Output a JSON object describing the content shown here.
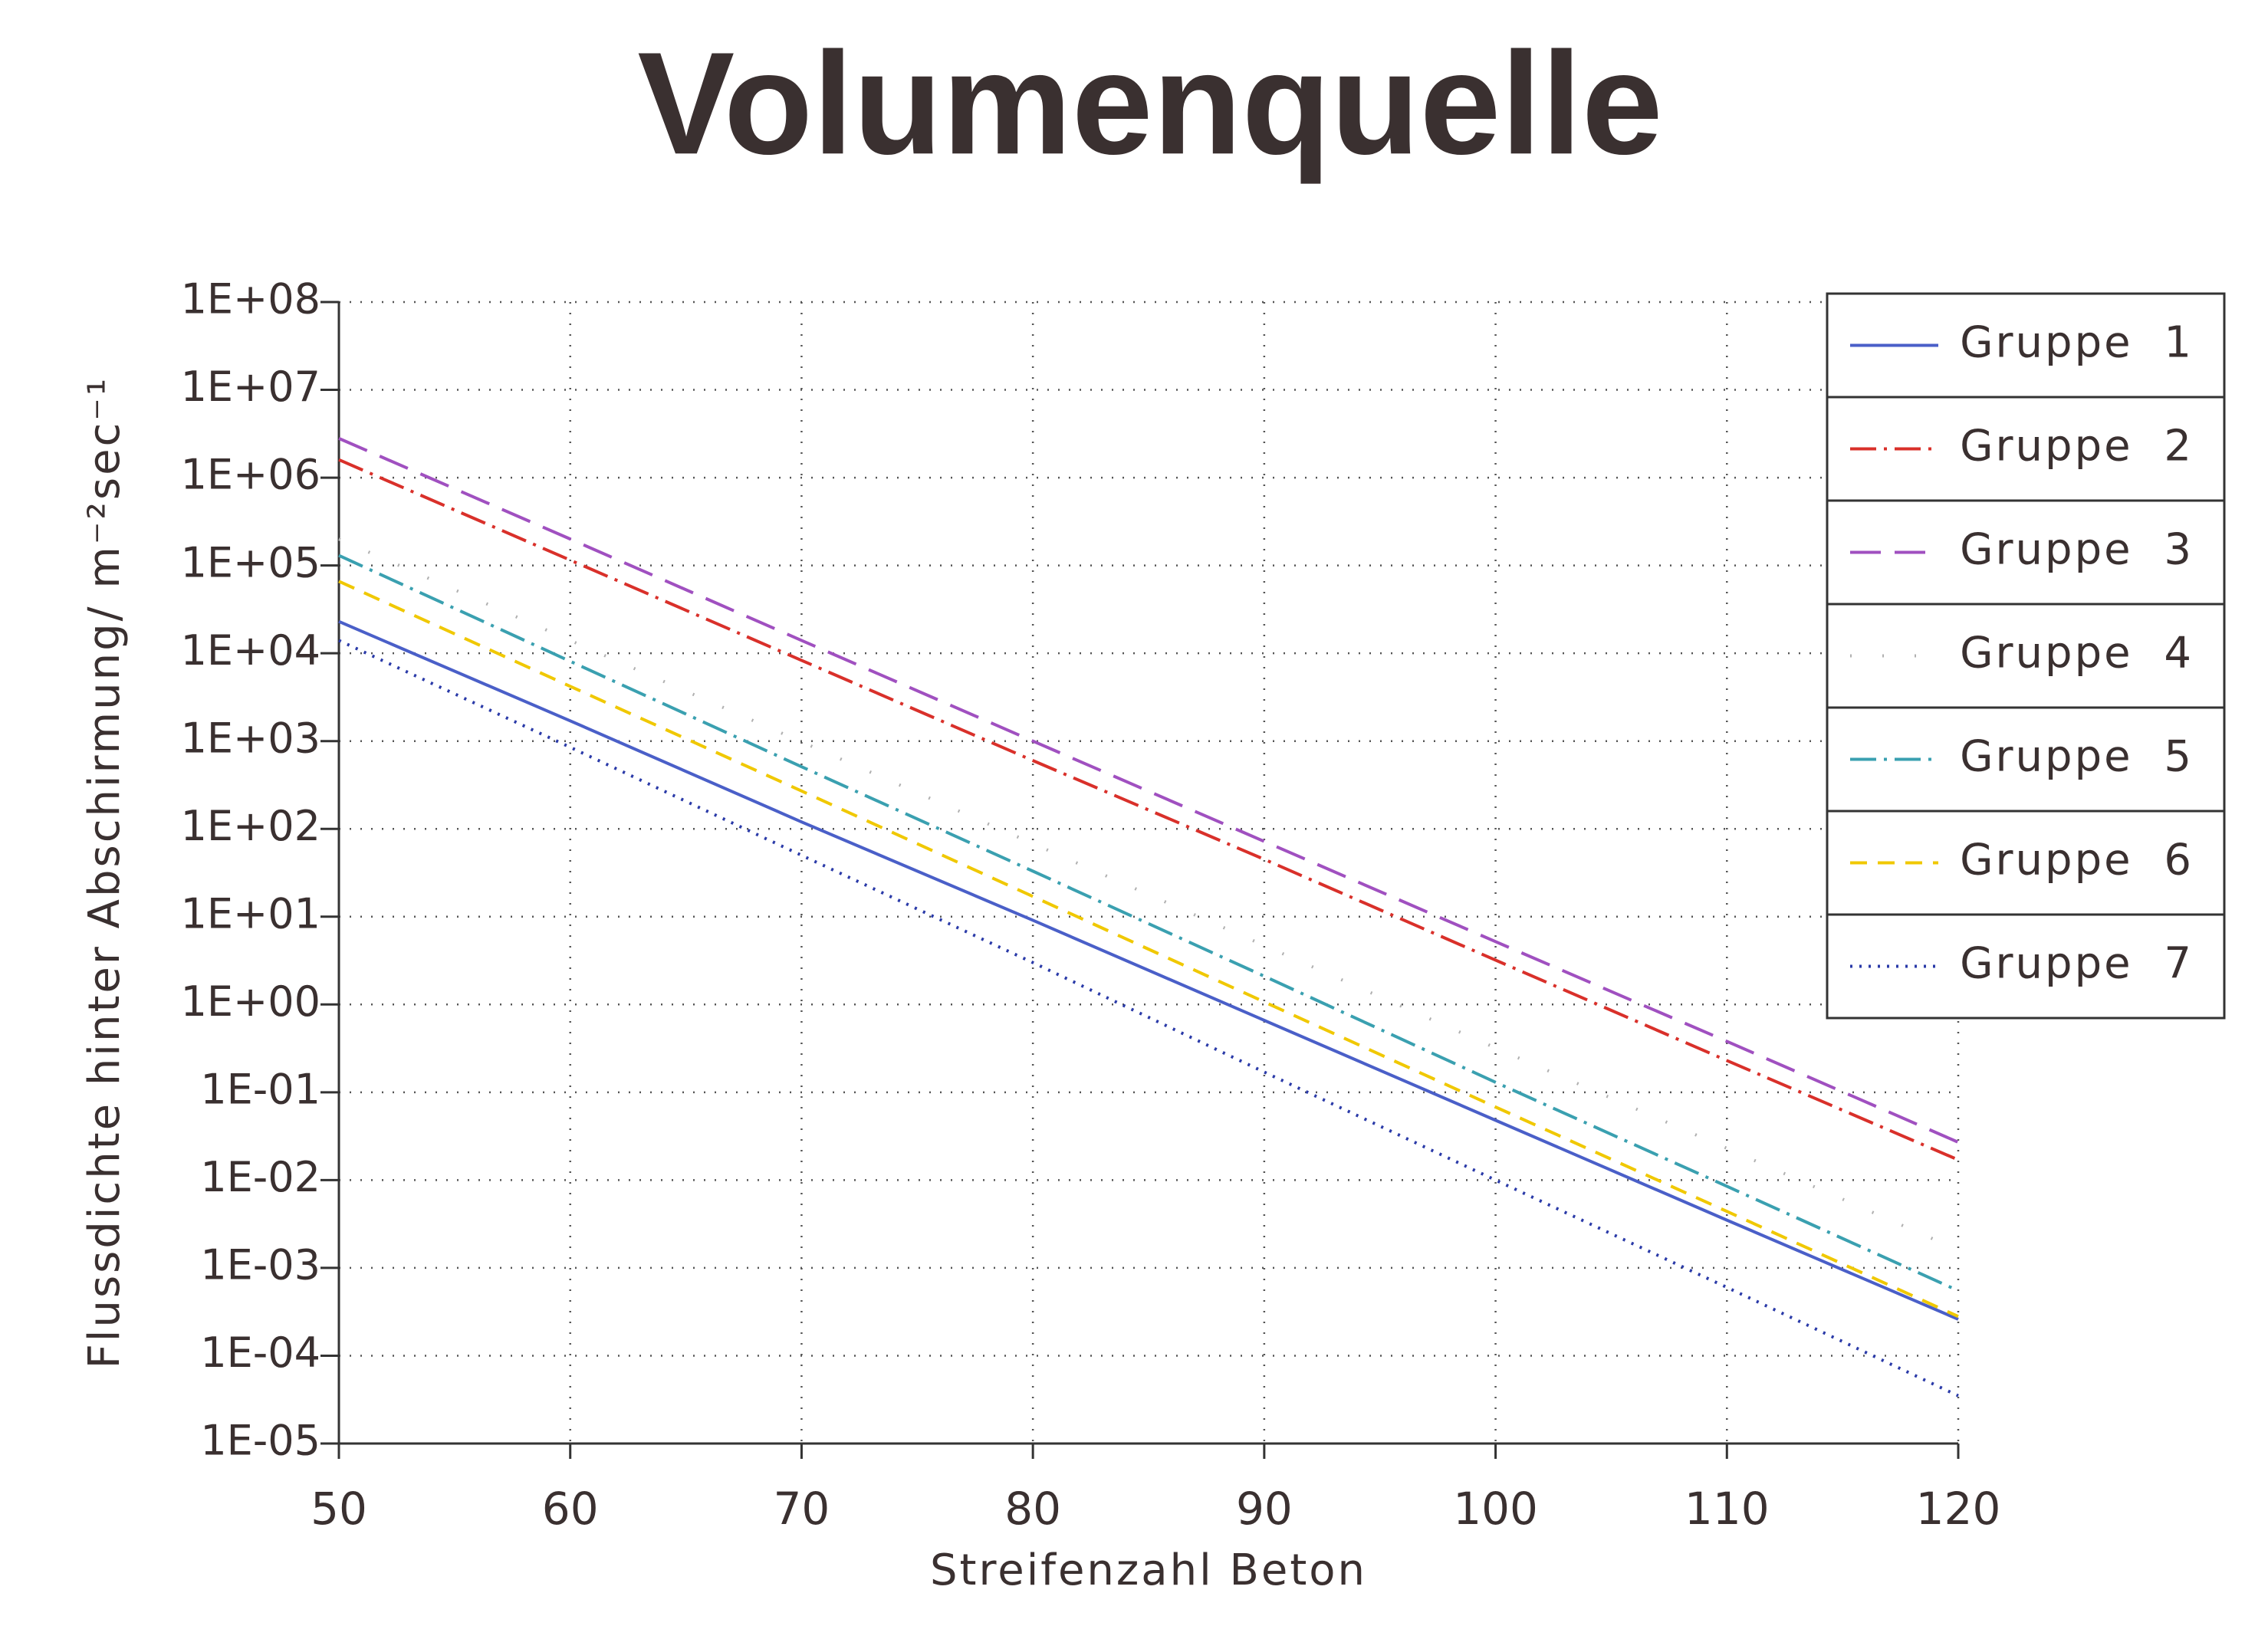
{
  "chart_data": {
    "type": "line",
    "title": "Volumenquelle",
    "x_label": "Streifenzahl Beton",
    "y_label": "Flussdichte hinter Abschirmung/ m⁻²sec⁻¹",
    "y_scale": "log",
    "grid": true,
    "legend": "upper right",
    "x": [
      50,
      60,
      70,
      80,
      90,
      100,
      110,
      120
    ],
    "xlim": [
      50,
      120
    ],
    "xticks": [
      50,
      60,
      70,
      80,
      90,
      100,
      110,
      120
    ],
    "ylim": [
      1e-05,
      100000000
    ],
    "yticks": [
      {
        "value": 1e-05,
        "label": "1E-05"
      },
      {
        "value": 0.0001,
        "label": "1E-04"
      },
      {
        "value": 0.001,
        "label": "1E-03"
      },
      {
        "value": 0.01,
        "label": "1E-02"
      },
      {
        "value": 0.1,
        "label": "1E-01"
      },
      {
        "value": 1,
        "label": "1E+00"
      },
      {
        "value": 10,
        "label": "1E+01"
      },
      {
        "value": 100,
        "label": "1E+02"
      },
      {
        "value": 1000,
        "label": "1E+03"
      },
      {
        "value": 10000,
        "label": "1E+04"
      },
      {
        "value": 100000,
        "label": "1E+05"
      },
      {
        "value": 1000000,
        "label": "1E+06"
      },
      {
        "value": 10000000,
        "label": "1E+07"
      },
      {
        "value": 100000000,
        "label": "1E+08"
      }
    ],
    "series": [
      {
        "name": "Gruppe 1",
        "color": "#4a5fc8",
        "dash": "solid",
        "values": [
          23000,
          1700,
          120,
          9.1,
          0.66,
          0.048,
          0.0035,
          0.00026
        ]
      },
      {
        "name": "Gruppe 2",
        "color": "#d9302a",
        "dash": "dashdot",
        "values": [
          1600000,
          115000,
          8300,
          600,
          45,
          3.2,
          0.23,
          0.017
        ]
      },
      {
        "name": "Gruppe 3",
        "color": "#a050c0",
        "dash": "longdash",
        "values": [
          2800000,
          200000,
          14000,
          1000,
          72,
          5.2,
          0.38,
          0.027
        ]
      },
      {
        "name": "Gruppe 4",
        "color": "#b0b0b0",
        "dash": "sparse",
        "values": [
          200000,
          14000,
          980,
          68,
          4.7,
          0.32,
          0.023,
          0.0016
        ]
      },
      {
        "name": "Gruppe 5",
        "color": "#3aa0b0",
        "dash": "dashdot",
        "values": [
          130000,
          8100,
          510,
          33,
          2.1,
          0.13,
          0.0085,
          0.00055
        ]
      },
      {
        "name": "Gruppe 6",
        "color": "#f0c800",
        "dash": "dashed",
        "values": [
          66000,
          4200,
          270,
          17,
          1.07,
          0.068,
          0.0044,
          0.00028
        ]
      },
      {
        "name": "Gruppe 7",
        "color": "#2a3aa8",
        "dash": "dotted",
        "values": [
          14000,
          850,
          50,
          3.0,
          0.17,
          0.01,
          0.0006,
          3.5e-05
        ]
      }
    ]
  }
}
